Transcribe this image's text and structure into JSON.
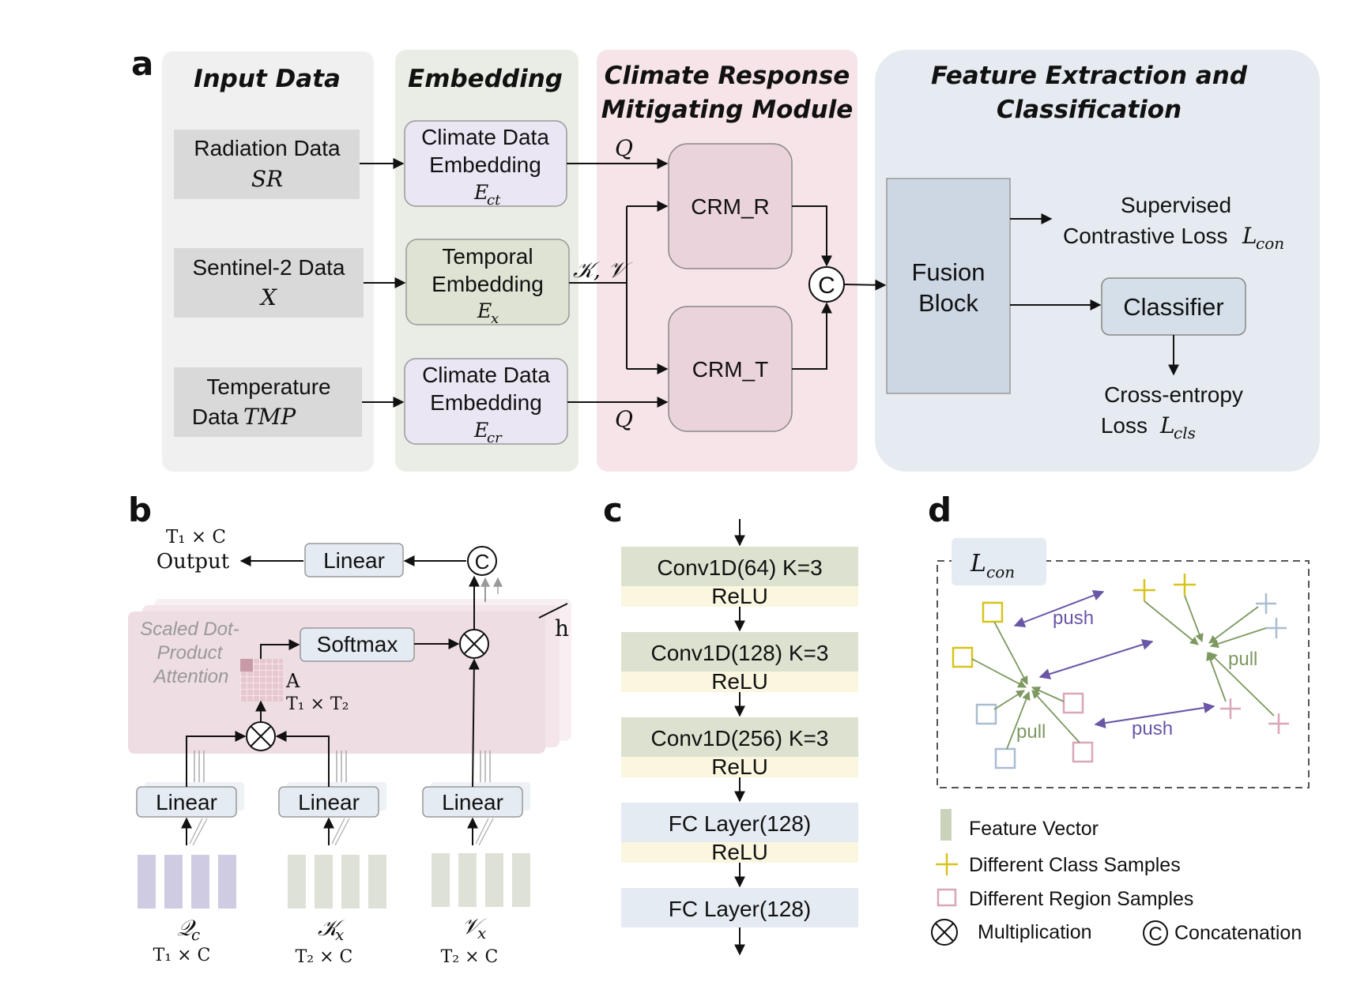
{
  "panel_a": {
    "label": "a",
    "sections": {
      "input": "Input Data",
      "embedding": "Embedding",
      "crm_line1": "Climate Response",
      "crm_line2": "Mitigating  Module",
      "fe_line1": "Feature Extraction and",
      "fe_line2": "Classification"
    },
    "inputs": [
      {
        "line1": "Radiation Data",
        "line2": "SR"
      },
      {
        "line1": "Sentinel-2 Data",
        "line2": "X"
      },
      {
        "line1": "Temperature",
        "line2": "Data",
        "sym": "TMP"
      }
    ],
    "embeddings": [
      {
        "line1": "Climate Data",
        "line2": "Embedding",
        "sym": "E",
        "sub": "ct"
      },
      {
        "line1": "Temporal",
        "line2": "Embedding",
        "sym": "E",
        "sub": "x"
      },
      {
        "line1": "Climate Data",
        "line2": "Embedding",
        "sym": "E",
        "sub": "cr"
      }
    ],
    "q_label": "Q",
    "kv_label": "𝒦, 𝒱",
    "crm_r": "CRM_R",
    "crm_t": "CRM_T",
    "concat_symbol": "C",
    "fusion_line1": "Fusion",
    "fusion_line2": "Block",
    "supervised_line1": "Supervised",
    "supervised_line2": "Contrastive Loss",
    "lcon_sym": "L",
    "lcon_sub": "con",
    "classifier": "Classifier",
    "ce_line1": "Cross-entropy",
    "ce_line2": "Loss",
    "lcls_sym": "L",
    "lcls_sub": "cls"
  },
  "panel_b": {
    "label": "b",
    "output_dim": "T₁ × C",
    "output": "Output",
    "linear": "Linear",
    "concat_symbol": "C",
    "sdpa_line1": "Scaled Dot-",
    "sdpa_line2": "Product",
    "sdpa_line3": "Attention",
    "softmax": "Softmax",
    "attn_A": "A",
    "attn_dim": "T₁ × T₂",
    "heads": "h",
    "inputs": [
      {
        "sym": "𝒬",
        "sub": "c",
        "dim": "T₁ × C"
      },
      {
        "sym": "𝒦",
        "sub": "x",
        "dim": "T₂ × C"
      },
      {
        "sym": "𝒱",
        "sub": "x",
        "dim": "T₂ × C"
      }
    ]
  },
  "panel_c": {
    "label": "c",
    "layers": [
      {
        "name": "Conv1D(64) K=3",
        "act": "ReLU"
      },
      {
        "name": "Conv1D(128) K=3",
        "act": "ReLU"
      },
      {
        "name": "Conv1D(256) K=3",
        "act": "ReLU"
      },
      {
        "name": "FC Layer(128)",
        "act": "ReLU"
      },
      {
        "name": "FC Layer(128)",
        "act": ""
      }
    ]
  },
  "panel_d": {
    "label": "d",
    "lcon_sym": "L",
    "lcon_sub": "con",
    "push": "push",
    "pull": "pull",
    "legend": {
      "feature_vector": "Feature Vector",
      "class_samples": "Different Class Samples",
      "region_samples": "Different Region Samples",
      "multiplication": "Multiplication",
      "concatenation": "Concatenation"
    }
  },
  "colors": {
    "input_bg": "#f0f0f0",
    "embedding_bg": "#eaede6",
    "crm_bg": "#f6e4e8",
    "fe_bg": "#e6ebf1",
    "input_box": "#d9d9d9",
    "embed_purple": "#eae6f3",
    "embed_green": "#dee3d3",
    "crm_box": "#ead3da",
    "fusion": "#cdd7e3",
    "classifier": "#d5dfe9",
    "conv": "#dce2cf",
    "relu": "#faf6df",
    "fc": "#e5ebf3",
    "yellow": "#d6c41a",
    "pink": "#d9a7b8",
    "blue": "#a9bdd1",
    "green_arrow": "#7d9860",
    "purple_arrow": "#6a56a6"
  }
}
